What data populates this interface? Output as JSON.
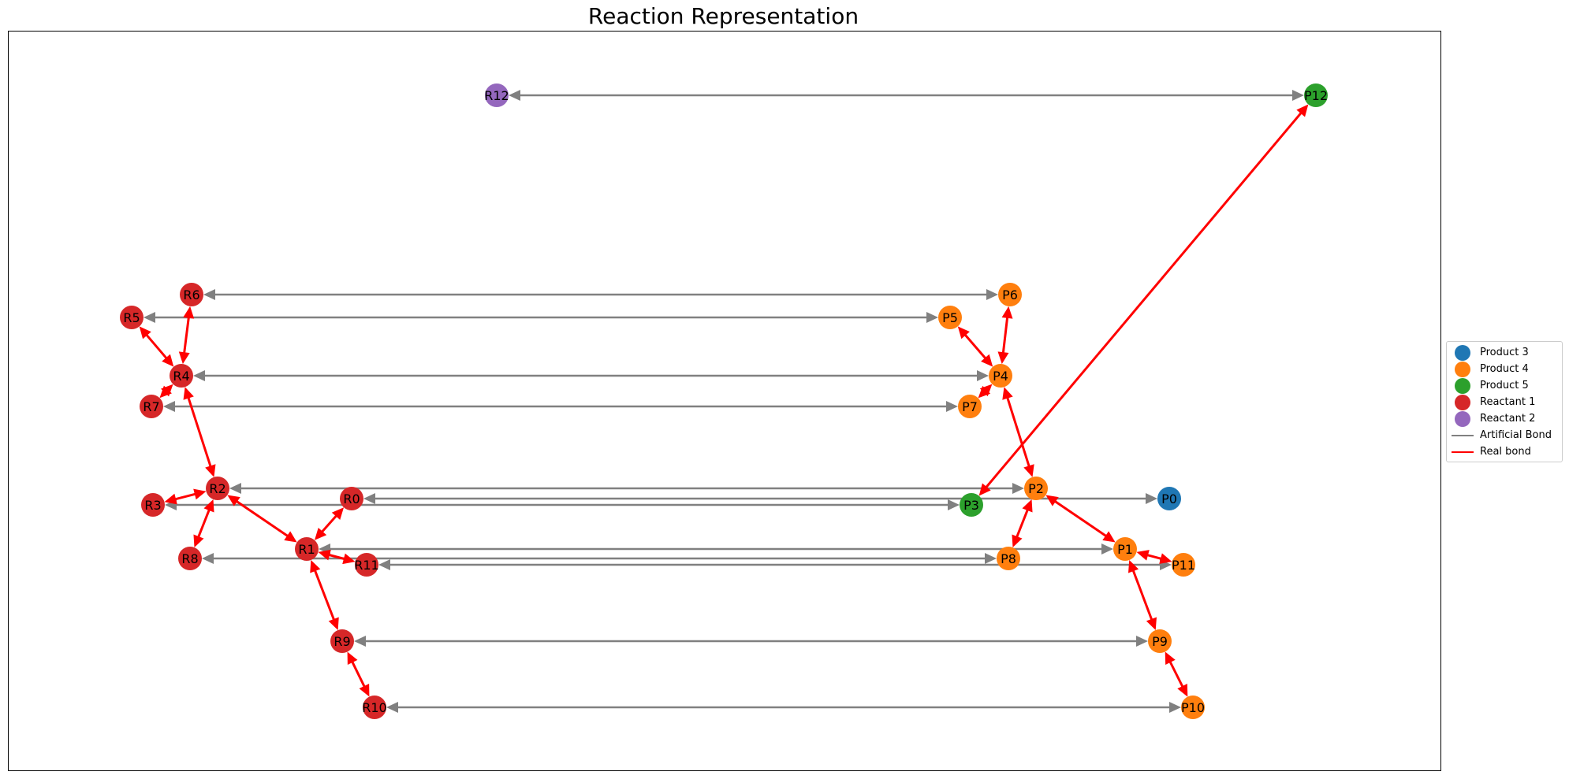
{
  "title": "Reaction Representation",
  "colors": {
    "Product 3": "#1f77b4",
    "Product 4": "#ff7f0e",
    "Product 5": "#2ca02c",
    "Reactant 1": "#d62728",
    "Reactant 2": "#9467bd",
    "artificial": "#808080",
    "real": "#ff0000"
  },
  "legend": [
    {
      "label": "Product 3",
      "kind": "dot",
      "color": "#1f77b4"
    },
    {
      "label": "Product 4",
      "kind": "dot",
      "color": "#ff7f0e"
    },
    {
      "label": "Product 5",
      "kind": "dot",
      "color": "#2ca02c"
    },
    {
      "label": "Reactant 1",
      "kind": "dot",
      "color": "#d62728"
    },
    {
      "label": "Reactant 2",
      "kind": "dot",
      "color": "#9467bd"
    },
    {
      "label": "Artificial Bond",
      "kind": "line",
      "color": "#808080"
    },
    {
      "label": "Real bond",
      "kind": "line",
      "color": "#ff0000"
    }
  ],
  "nodes": [
    {
      "id": "R12",
      "group": "Reactant 2"
    },
    {
      "id": "P12",
      "group": "Product 5"
    },
    {
      "id": "R6",
      "group": "Reactant 1"
    },
    {
      "id": "P6",
      "group": "Product 4"
    },
    {
      "id": "R5",
      "group": "Reactant 1"
    },
    {
      "id": "P5",
      "group": "Product 4"
    },
    {
      "id": "R4",
      "group": "Reactant 1"
    },
    {
      "id": "P4",
      "group": "Product 4"
    },
    {
      "id": "R7",
      "group": "Reactant 1"
    },
    {
      "id": "P7",
      "group": "Product 4"
    },
    {
      "id": "R2",
      "group": "Reactant 1"
    },
    {
      "id": "P2",
      "group": "Product 4"
    },
    {
      "id": "R3",
      "group": "Reactant 1"
    },
    {
      "id": "R0",
      "group": "Reactant 1"
    },
    {
      "id": "P3",
      "group": "Product 5"
    },
    {
      "id": "P0",
      "group": "Product 3"
    },
    {
      "id": "R1",
      "group": "Reactant 1"
    },
    {
      "id": "P1",
      "group": "Product 4"
    },
    {
      "id": "R8",
      "group": "Reactant 1"
    },
    {
      "id": "P8",
      "group": "Product 4"
    },
    {
      "id": "R11",
      "group": "Reactant 1"
    },
    {
      "id": "P11",
      "group": "Product 4"
    },
    {
      "id": "R9",
      "group": "Reactant 1"
    },
    {
      "id": "P9",
      "group": "Product 4"
    },
    {
      "id": "R10",
      "group": "Reactant 1"
    },
    {
      "id": "P10",
      "group": "Product 4"
    }
  ],
  "edges": [
    {
      "from": "R12",
      "to": "P12",
      "type": "artificial"
    },
    {
      "from": "R6",
      "to": "P6",
      "type": "artificial"
    },
    {
      "from": "R5",
      "to": "P5",
      "type": "artificial"
    },
    {
      "from": "R4",
      "to": "P4",
      "type": "artificial"
    },
    {
      "from": "R7",
      "to": "P7",
      "type": "artificial"
    },
    {
      "from": "R2",
      "to": "P2",
      "type": "artificial"
    },
    {
      "from": "R0",
      "to": "P0",
      "type": "artificial"
    },
    {
      "from": "R3",
      "to": "P3",
      "type": "artificial"
    },
    {
      "from": "R1",
      "to": "P1",
      "type": "artificial"
    },
    {
      "from": "R8",
      "to": "P8",
      "type": "artificial"
    },
    {
      "from": "R11",
      "to": "P11",
      "type": "artificial"
    },
    {
      "from": "R9",
      "to": "P9",
      "type": "artificial"
    },
    {
      "from": "R10",
      "to": "P10",
      "type": "artificial"
    },
    {
      "from": "R5",
      "to": "R4",
      "type": "real"
    },
    {
      "from": "R6",
      "to": "R4",
      "type": "real"
    },
    {
      "from": "R4",
      "to": "R7",
      "type": "real"
    },
    {
      "from": "R4",
      "to": "R2",
      "type": "real"
    },
    {
      "from": "R2",
      "to": "R3",
      "type": "real"
    },
    {
      "from": "R2",
      "to": "R8",
      "type": "real"
    },
    {
      "from": "R2",
      "to": "R1",
      "type": "real"
    },
    {
      "from": "R1",
      "to": "R0",
      "type": "real"
    },
    {
      "from": "R1",
      "to": "R11",
      "type": "real"
    },
    {
      "from": "R1",
      "to": "R9",
      "type": "real"
    },
    {
      "from": "R9",
      "to": "R10",
      "type": "real"
    },
    {
      "from": "P5",
      "to": "P4",
      "type": "real"
    },
    {
      "from": "P6",
      "to": "P4",
      "type": "real"
    },
    {
      "from": "P4",
      "to": "P7",
      "type": "real"
    },
    {
      "from": "P4",
      "to": "P2",
      "type": "real"
    },
    {
      "from": "P2",
      "to": "P8",
      "type": "real"
    },
    {
      "from": "P2",
      "to": "P1",
      "type": "real"
    },
    {
      "from": "P1",
      "to": "P11",
      "type": "real"
    },
    {
      "from": "P1",
      "to": "P9",
      "type": "real"
    },
    {
      "from": "P9",
      "to": "P10",
      "type": "real"
    },
    {
      "from": "P3",
      "to": "P12",
      "type": "real"
    }
  ]
}
